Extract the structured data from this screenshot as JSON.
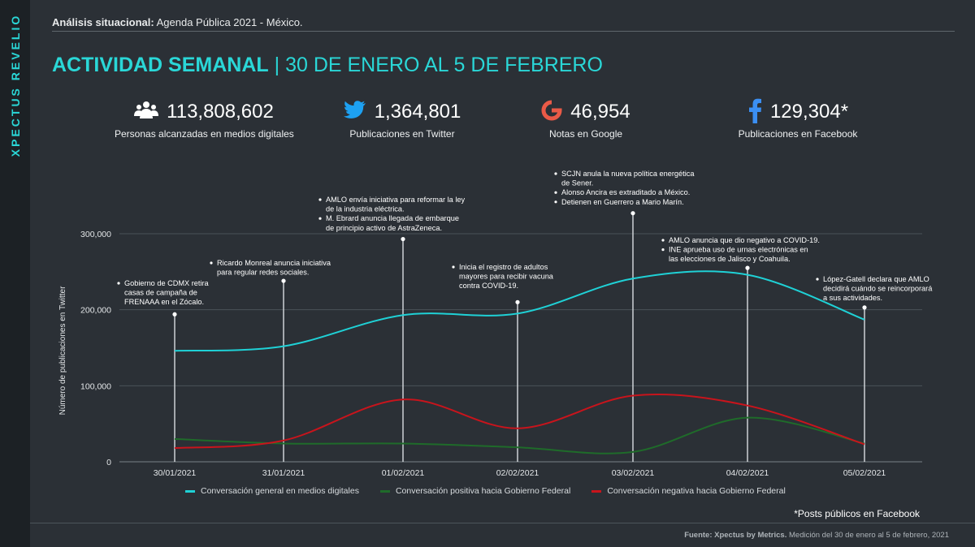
{
  "brand": "XPECTUS REVELIO",
  "header": {
    "bold": "Análisis situacional:",
    "rest": " Agenda Pública 2021 - México."
  },
  "title": {
    "bold": "ACTIVIDAD SEMANAL",
    "sep": " | ",
    "rest": "30 DE ENERO AL 5 DE FEBRERO"
  },
  "colors": {
    "accent": "#2ad7d7",
    "general": "#1fd1d6",
    "positive": "#1f6b2a",
    "negative": "#c8141c",
    "background": "#2b3036"
  },
  "stats": [
    {
      "icon": "people-icon",
      "value": "113,808,602",
      "label": "Personas alcanzadas en medios digitales"
    },
    {
      "icon": "twitter-icon",
      "value": "1,364,801",
      "label": "Publicaciones en Twitter"
    },
    {
      "icon": "google-icon",
      "value": "46,954",
      "label": "Notas en Google"
    },
    {
      "icon": "facebook-icon",
      "value": "129,304*",
      "label": "Publicaciones en Facebook"
    }
  ],
  "chart_data": {
    "type": "line",
    "title": "",
    "xlabel": "",
    "ylabel": "Número de publicaciones en Twitter",
    "ylim": [
      0,
      300000
    ],
    "yticks": [
      "0",
      "100,000",
      "200,000",
      "300,000"
    ],
    "categories": [
      "30/01/2021",
      "31/01/2021",
      "01/02/2021",
      "02/02/2021",
      "03/02/2021",
      "04/02/2021",
      "05/02/2021"
    ],
    "grid": "horizontal",
    "legend_position": "bottom",
    "series": [
      {
        "name": "Conversación general en medios digitales",
        "color": "#1fd1d6",
        "values": [
          146000,
          152000,
          193000,
          195000,
          241000,
          246000,
          187000
        ]
      },
      {
        "name": "Conversación positiva hacia Gobierno Federal",
        "color": "#1f6b2a",
        "values": [
          30000,
          24000,
          24000,
          19000,
          13000,
          58000,
          24000
        ]
      },
      {
        "name": "Conversación negativa hacia Gobierno Federal",
        "color": "#c8141c",
        "values": [
          18000,
          28000,
          82000,
          44000,
          87000,
          74000,
          23000
        ]
      }
    ],
    "annotations": [
      {
        "category": "30/01/2021",
        "marker_value": 194000,
        "lines": [
          "Gobierno de CDMX retira",
          "casas de campaña de",
          "FRENAAA en el Zócalo."
        ],
        "bullets": [
          0
        ]
      },
      {
        "category": "31/01/2021",
        "marker_value": 238000,
        "lines": [
          "Ricardo Monreal anuncia iniciativa",
          "para regular redes sociales."
        ],
        "bullets": [
          0
        ]
      },
      {
        "category": "01/02/2021",
        "marker_value": 293000,
        "lines": [
          "AMLO envía iniciativa para reformar la ley",
          "de la industria eléctrica.",
          "M. Ebrard anuncia llegada de embarque",
          "de principio activo de AstraZeneca."
        ],
        "bullets": [
          0,
          2
        ]
      },
      {
        "category": "02/02/2021",
        "marker_value": 210000,
        "lines": [
          "Inicia el registro de adultos",
          "mayores para recibir vacuna",
          "contra COVID-19."
        ],
        "bullets": [
          0
        ]
      },
      {
        "category": "03/02/2021",
        "marker_value": 327000,
        "lines": [
          "SCJN anula la nueva política energética",
          "de Sener.",
          "Alonso Ancira es extraditado a México.",
          "Detienen en Guerrero a Mario Marín."
        ],
        "bullets": [
          0,
          2,
          3
        ]
      },
      {
        "category": "04/02/2021",
        "marker_value": 255000,
        "lines": [
          "AMLO anuncia que dio negativo a COVID-19.",
          "INE aprueba uso de urnas electrónicas en",
          "las elecciones de Jalisco y Coahuila."
        ],
        "bullets": [
          0,
          1
        ]
      },
      {
        "category": "05/02/2021",
        "marker_value": 203000,
        "lines": [
          "López-Gatell declara que AMLO",
          "decidirá cuándo se reincorporará",
          "a sus actividades."
        ],
        "bullets": [
          0
        ]
      }
    ]
  },
  "footnote": "*Posts públicos en Facebook",
  "source": {
    "bold": "Fuente: Xpectus by Metrics.",
    "rest": " Medición del 30 de enero al 5 de febrero, 2021"
  }
}
